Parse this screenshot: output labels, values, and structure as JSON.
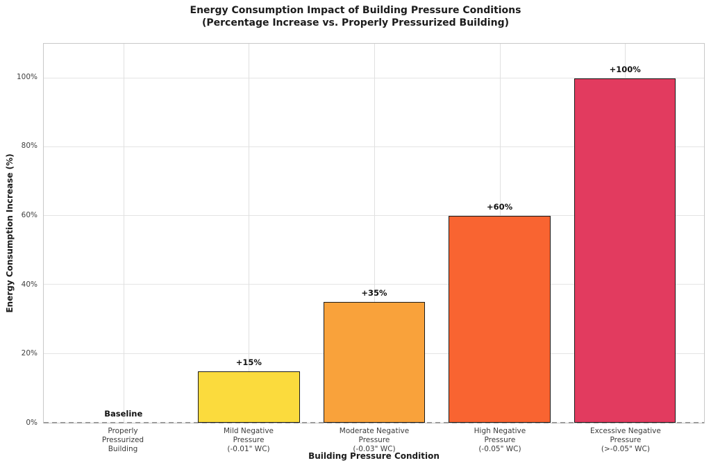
{
  "chart_data": {
    "type": "bar",
    "title_lines": [
      "Energy Consumption Impact of Building Pressure Conditions",
      "(Percentage Increase vs. Properly Pressurized Building)"
    ],
    "xlabel": "Building Pressure Condition",
    "ylabel": "Energy Consumption Increase (%)",
    "categories": [
      "Properly\nPressurized\nBuilding",
      "Mild Negative\nPressure\n(-0.01\" WC)",
      "Moderate Negative\nPressure\n(-0.03\" WC)",
      "High Negative\nPressure\n(-0.05\" WC)",
      "Excessive Negative\nPressure\n(>-0.05\" WC)"
    ],
    "values": [
      0,
      15,
      35,
      60,
      100
    ],
    "bar_labels": [
      "Baseline",
      "+15%",
      "+35%",
      "+60%",
      "+100%"
    ],
    "bar_colors": [
      null,
      "#FBDB3D",
      "#F9A23B",
      "#F96431",
      "#E23B5F"
    ],
    "bar_edge_color": "#1a1a1a",
    "yticks": [
      0,
      20,
      40,
      60,
      80,
      100
    ],
    "ytick_labels": [
      "0%",
      "20%",
      "40%",
      "60%",
      "80%",
      "100%"
    ],
    "ylim": [
      0,
      110
    ],
    "grid": true,
    "legend": "none",
    "baseline": {
      "y": 0,
      "style": "dashed",
      "color": "#9a9a9a"
    }
  }
}
